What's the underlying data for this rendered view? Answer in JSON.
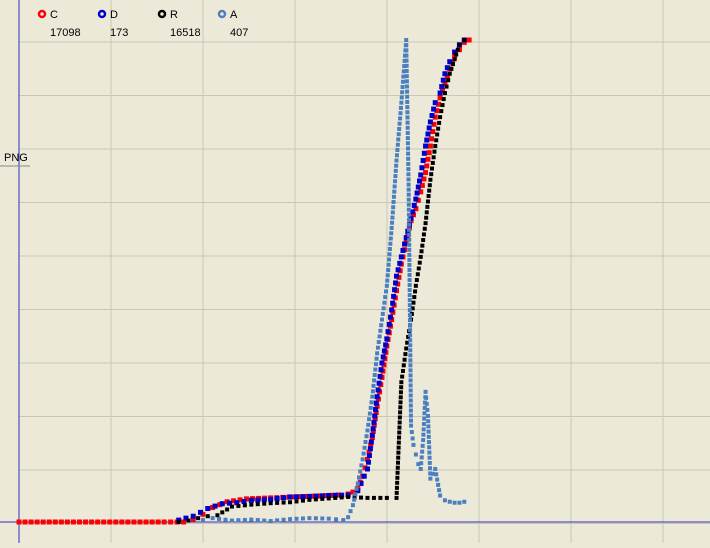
{
  "chart_data": {
    "type": "scatter",
    "title": "",
    "xlabel": "",
    "ylabel": "PNG",
    "grid": true,
    "legend_position": "top-left",
    "xlim": [
      0,
      100
    ],
    "ylim": [
      0,
      100
    ],
    "colors": {
      "background": "#ece9d8",
      "grid": "#c9c6b4",
      "axis": "#3030c0"
    },
    "series": [
      {
        "name": "C",
        "count": "17098",
        "color": "#ff0000",
        "points": [
          [
            0,
            0
          ],
          [
            5,
            0
          ],
          [
            10,
            0
          ],
          [
            15,
            0
          ],
          [
            20,
            0
          ],
          [
            25,
            0
          ],
          [
            30,
            0
          ],
          [
            34,
            0
          ],
          [
            36,
            0.6
          ],
          [
            38,
            1.6
          ],
          [
            40,
            3.0
          ],
          [
            43,
            4.2
          ],
          [
            47,
            4.8
          ],
          [
            52,
            5.0
          ],
          [
            57,
            5.2
          ],
          [
            62,
            5.4
          ],
          [
            66,
            5.6
          ],
          [
            68,
            5.8
          ],
          [
            69,
            6.2
          ],
          [
            70,
            7.0
          ],
          [
            71,
            9.5
          ],
          [
            72,
            13.0
          ],
          [
            73,
            17.5
          ],
          [
            74,
            24.0
          ],
          [
            75,
            30.0
          ],
          [
            76,
            36.5
          ],
          [
            77,
            42.0
          ],
          [
            78,
            48.0
          ],
          [
            79,
            53.5
          ],
          [
            80,
            58.0
          ],
          [
            81,
            62.5
          ],
          [
            82,
            65.0
          ],
          [
            83,
            68.5
          ],
          [
            84,
            72.5
          ],
          [
            85,
            78.0
          ],
          [
            86,
            84.0
          ],
          [
            87,
            88.0
          ],
          [
            88,
            91.0
          ],
          [
            89,
            94.0
          ],
          [
            90,
            96.5
          ],
          [
            91,
            98.0
          ],
          [
            92,
            99.5
          ],
          [
            93,
            100
          ]
        ]
      },
      {
        "name": "D",
        "count": "173",
        "color": "#0000cc",
        "points": [
          [
            33,
            0.4
          ],
          [
            36,
            1.2
          ],
          [
            39,
            2.8
          ],
          [
            42,
            3.8
          ],
          [
            45,
            4.0
          ],
          [
            48,
            4.5
          ],
          [
            52,
            4.7
          ],
          [
            56,
            5.2
          ],
          [
            60,
            5.3
          ],
          [
            64,
            5.5
          ],
          [
            68,
            5.6
          ],
          [
            70,
            6.5
          ],
          [
            72,
            11.0
          ],
          [
            73,
            18.0
          ],
          [
            74,
            26.0
          ],
          [
            75,
            33.0
          ],
          [
            76,
            38.0
          ],
          [
            77,
            44.0
          ],
          [
            78,
            51.0
          ],
          [
            79,
            55.0
          ],
          [
            80,
            59.0
          ],
          [
            81,
            63.0
          ],
          [
            82,
            67.0
          ],
          [
            83,
            72.0
          ],
          [
            84,
            78.0
          ],
          [
            85,
            83.0
          ],
          [
            86,
            87.0
          ],
          [
            87,
            89.0
          ],
          [
            88,
            93.0
          ],
          [
            89,
            95.5
          ],
          [
            90,
            97.5
          ],
          [
            91,
            99.0
          ],
          [
            92,
            100
          ]
        ]
      },
      {
        "name": "R",
        "count": "16518",
        "color": "#000000",
        "points": [
          [
            33,
            0
          ],
          [
            35,
            0.3
          ],
          [
            37,
            0.8
          ],
          [
            39,
            1.2
          ],
          [
            41,
            1.4
          ],
          [
            44,
            3.2
          ],
          [
            48,
            3.6
          ],
          [
            52,
            3.9
          ],
          [
            56,
            4.1
          ],
          [
            60,
            4.6
          ],
          [
            64,
            4.9
          ],
          [
            68,
            5.2
          ],
          [
            72,
            5.0
          ],
          [
            76,
            5.0
          ],
          [
            78,
            5.0
          ],
          [
            79,
            29.0
          ],
          [
            80,
            36.0
          ],
          [
            81,
            42.0
          ],
          [
            82,
            49.0
          ],
          [
            83,
            55.0
          ],
          [
            84,
            62.0
          ],
          [
            85,
            71.0
          ],
          [
            86,
            78.0
          ],
          [
            87,
            84.0
          ],
          [
            88,
            89.0
          ],
          [
            89,
            93.0
          ],
          [
            90,
            96.0
          ],
          [
            91,
            99.0
          ],
          [
            92,
            100
          ]
        ]
      },
      {
        "name": "A",
        "count": "407",
        "color": "#4a7fc0",
        "points": [
          [
            38,
            0.4
          ],
          [
            40,
            0.8
          ],
          [
            44,
            0.3
          ],
          [
            48,
            0.5
          ],
          [
            52,
            0.2
          ],
          [
            56,
            0.6
          ],
          [
            60,
            0.8
          ],
          [
            64,
            0.7
          ],
          [
            67,
            0.4
          ],
          [
            68,
            1.0
          ],
          [
            69,
            3.5
          ],
          [
            70,
            8.0
          ],
          [
            71,
            13.0
          ],
          [
            72,
            19.0
          ],
          [
            73,
            26.0
          ],
          [
            74,
            35.0
          ],
          [
            75,
            42.0
          ],
          [
            76,
            49.0
          ],
          [
            77,
            61.0
          ],
          [
            78,
            75.0
          ],
          [
            79,
            87.0
          ],
          [
            80,
            100
          ],
          [
            80.5,
            70.0
          ],
          [
            81,
            20.0
          ],
          [
            81.5,
            16.0
          ],
          [
            82,
            14.0
          ],
          [
            82.5,
            12.0
          ],
          [
            83,
            11.0
          ],
          [
            83.5,
            17.0
          ],
          [
            84,
            27.0
          ],
          [
            84.5,
            22.0
          ],
          [
            85,
            9.0
          ],
          [
            86,
            11.0
          ],
          [
            87,
            5.5
          ],
          [
            88,
            4.5
          ],
          [
            89,
            4.2
          ],
          [
            90,
            4.0
          ],
          [
            91,
            4.0
          ],
          [
            92,
            4.2
          ]
        ]
      }
    ]
  }
}
